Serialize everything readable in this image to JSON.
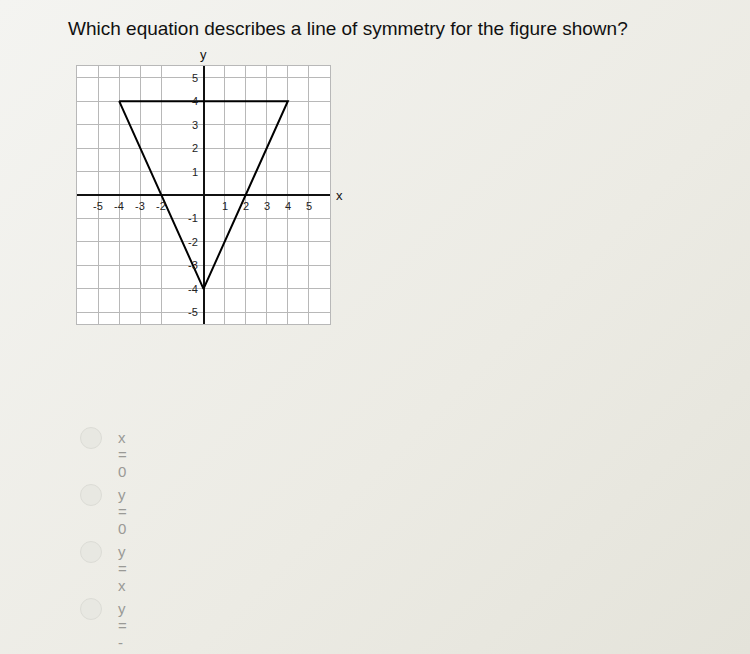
{
  "question": "Which equation describes a line of symmetry for the figure shown?",
  "chart_data": {
    "type": "line",
    "xlabel": "x",
    "ylabel": "y",
    "x": [
      -4,
      4,
      0,
      -4
    ],
    "values": [
      4,
      4,
      -4,
      4
    ],
    "color": "#000000",
    "xlim": [
      -6,
      6
    ],
    "ylim": [
      -5.5,
      5.5
    ],
    "xticks": [
      -5,
      -4,
      -3,
      -2,
      1,
      2,
      3,
      4,
      5
    ],
    "yticks": [
      -5,
      -4,
      -3,
      -2,
      -1,
      1,
      2,
      3,
      4,
      5
    ],
    "grid": true
  },
  "options": [
    "x = 0",
    "y = 0",
    "y = x",
    "y = -x"
  ]
}
